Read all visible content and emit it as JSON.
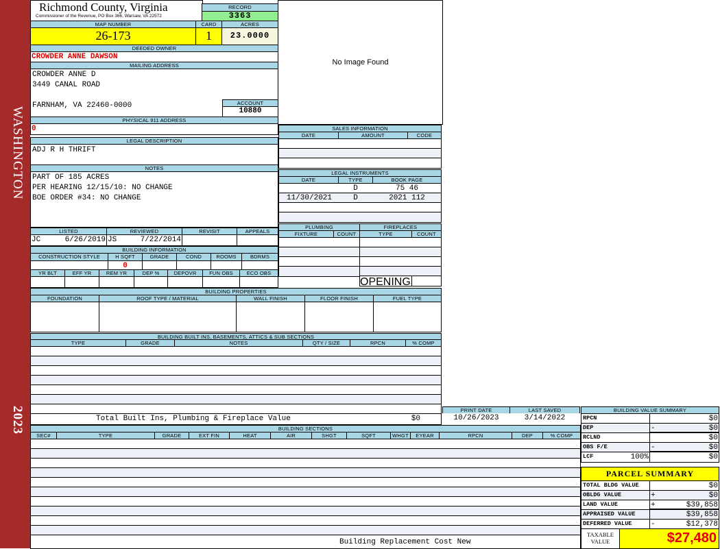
{
  "sidebar": {
    "district": "WASHINGTON",
    "year": "2023",
    "color": "#a52a2a"
  },
  "header": {
    "county": "Richmond County, Virginia",
    "subtitle": "Commissioner of the Revenue, PO Box 366, Warsaw, VA 22572"
  },
  "record": {
    "label": "RECORD",
    "value": "3363"
  },
  "map": {
    "map_label": "MAP NUMBER",
    "map_number": "26-173",
    "card_label": "CARD",
    "card": "1",
    "acres_label": "ACRES",
    "acres": "23.0000"
  },
  "owner": {
    "label": "DEEDED OWNER",
    "name": "CROWDER ANNE DAWSON"
  },
  "mailing": {
    "label": "MAILING ADDRESS",
    "lines": [
      "CROWDER ANNE D",
      "3449 CANAL ROAD",
      "",
      "FARNHAM, VA 22460-0000"
    ]
  },
  "account": {
    "label": "ACCOUNT",
    "value": "10880"
  },
  "physical": {
    "label": "PHYSICAL 911 ADDRESS",
    "value": "0"
  },
  "legal": {
    "label": "LEGAL DESCRIPTION",
    "value": "ADJ R H THRIFT"
  },
  "notes": {
    "label": "NOTES",
    "lines": [
      "PART OF 185 ACRES",
      "PER HEARING 12/15/10: NO CHANGE",
      "BOE ORDER #34: NO CHANGE"
    ]
  },
  "image": {
    "text": "No Image Found"
  },
  "status": {
    "listed_label": "LISTED",
    "listed_by": "JC",
    "listed_date": "6/26/2019",
    "reviewed_label": "REVIEWED",
    "reviewed_by": "JS",
    "reviewed_date": "7/22/2014",
    "revisit_label": "REVISIT",
    "appeals_label": "APPEALS"
  },
  "building_info": {
    "label": "BUILDING INFORMATION",
    "cols1": [
      "CONSTRUCTION STYLE",
      "H SQFT",
      "GRADE",
      "COND",
      "ROOMS",
      "BDRMS"
    ],
    "hsqft": "0",
    "cols2": [
      "YR BLT",
      "EFF YR",
      "REM YR",
      "DEP %",
      "DEPOVR",
      "FUN OBS",
      "ECO OBS"
    ]
  },
  "sales": {
    "label": "SALES INFORMATION",
    "cols": [
      "DATE",
      "AMOUNT",
      "CODE"
    ]
  },
  "instruments": {
    "label": "LEGAL INSTRUMENTS",
    "cols": [
      "DATE",
      "TYPE",
      "BOOK PAGE"
    ],
    "rows": [
      {
        "date": "",
        "type": "D",
        "bookpage": "75 46"
      },
      {
        "date": "11/30/2021",
        "type": "D",
        "bookpage": "2021 112"
      }
    ]
  },
  "plumbing": {
    "label": "PLUMBING",
    "cols": [
      "FIXTURE",
      "COUNT"
    ]
  },
  "fireplaces": {
    "label": "FIREPLACES",
    "cols": [
      "TYPE",
      "COUNT"
    ],
    "openings_label": "OPENINGS"
  },
  "properties": {
    "label": "BUILDING PROPERTIES",
    "cols": [
      "FOUNDATION",
      "ROOF TYPE / MATERIAL",
      "WALL FINISH",
      "FLOOR FINISH",
      "FUEL TYPE"
    ]
  },
  "builtins": {
    "label": "BUILDING BUILT INS, BASEMENTS, ATTICS & SUB SECTIONS",
    "cols": [
      "TYPE",
      "GRADE",
      "NOTES",
      "QTY / SIZE",
      "RPCN",
      "% COMP"
    ],
    "total_label": "Total Built Ins, Plumbing & Fireplace Value",
    "total_value": "$0"
  },
  "dates": {
    "print_label": "PRINT DATE",
    "print_date": "10/26/2023",
    "saved_label": "LAST SAVED",
    "saved_date": "3/14/2022"
  },
  "sections": {
    "label": "BUILDING SECTIONS",
    "cols": [
      "SEC#",
      "TYPE",
      "GRADE",
      "EXT FIN",
      "HEAT",
      "AIR",
      "SHGT",
      "SQFT",
      "WHGT",
      "EYEAR",
      "RPCN",
      "DEP",
      "% COMP"
    ],
    "footer": "Building Replacement Cost New"
  },
  "value_summary": {
    "label": "BUILDING VALUE SUMMARY",
    "rows": [
      {
        "label": "RPCN",
        "sign": "",
        "value": "$0"
      },
      {
        "label": "DEP",
        "sign": "-",
        "value": "$0"
      },
      {
        "label": "RCLND",
        "sign": "",
        "value": "$0"
      },
      {
        "label": "OBS F/E",
        "sign": "-",
        "value": "$0"
      },
      {
        "label": "LCF",
        "sign": "",
        "value": "$0"
      }
    ],
    "lcf_pct": "100%"
  },
  "parcel": {
    "label": "PARCEL SUMMARY",
    "rows": [
      {
        "label": "TOTAL BLDG VALUE",
        "sign": "",
        "value": "$0"
      },
      {
        "label": "OBLDG VALUE",
        "sign": "+",
        "value": "$0"
      },
      {
        "label": "LAND VALUE",
        "sign": "+",
        "value": "$39,858"
      },
      {
        "label": "APPRAISED VALUE",
        "sign": "",
        "value": "$39,858"
      },
      {
        "label": "DEFERRED VALUE",
        "sign": "-",
        "value": "$12,378"
      }
    ],
    "taxable_label": "TAXABLE VALUE",
    "taxable_value": "$27,480"
  }
}
